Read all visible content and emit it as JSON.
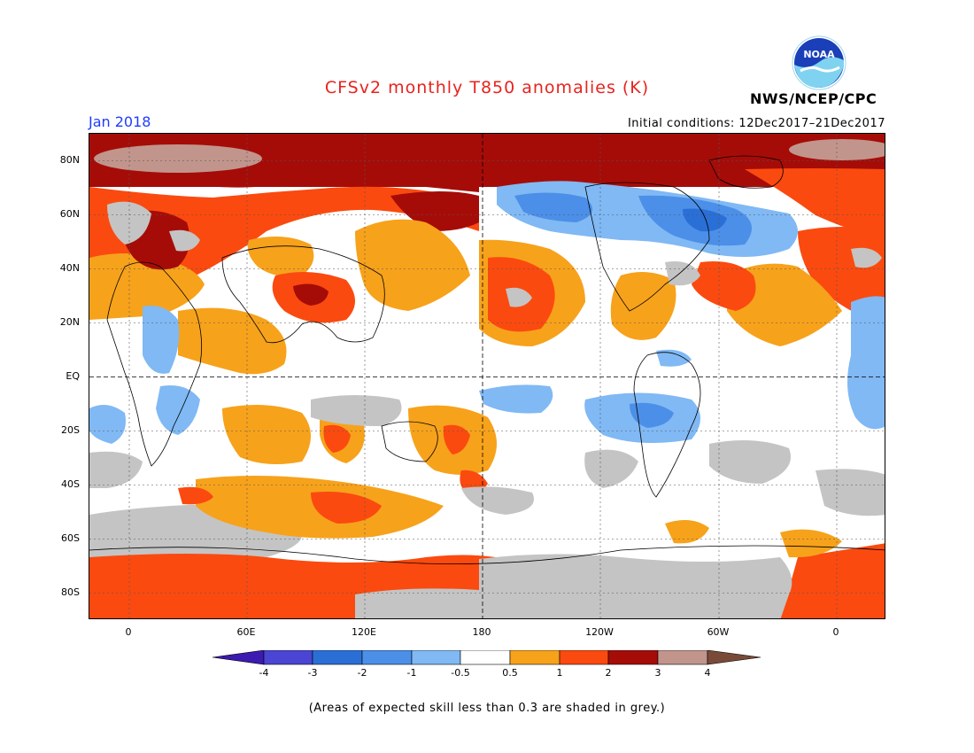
{
  "title": "CFSv2 monthly T850 anomalies (K)",
  "period": "Jan 2018",
  "initial_conditions": "Initial conditions: 12Dec2017–21Dec2017",
  "agency": "NWS/NCEP/CPC",
  "logo_text": "NOAA",
  "footnote": "(Areas of expected skill less than 0.3 are shaded in grey.)",
  "lat_labels": [
    "80N",
    "60N",
    "40N",
    "20N",
    "EQ",
    "20S",
    "40S",
    "60S",
    "80S"
  ],
  "lon_labels": [
    "0",
    "60E",
    "120E",
    "180",
    "120W",
    "60W",
    "0"
  ],
  "colorbar": {
    "labels": [
      "-4",
      "-3",
      "-2",
      "-1",
      "-0.5",
      "0.5",
      "1",
      "2",
      "3",
      "4"
    ],
    "colors": [
      "#3d1ab0",
      "#4a45d3",
      "#2a6fd6",
      "#4c8fe8",
      "#80b9f4",
      "#ffffff",
      "#f7a21b",
      "#fb4a0f",
      "#a50c08",
      "#c1958c",
      "#7a4a38"
    ]
  },
  "colors": {
    "title": "#e8231e",
    "period": "#1e3cff",
    "skill_grey": "#c4c4c4"
  }
}
